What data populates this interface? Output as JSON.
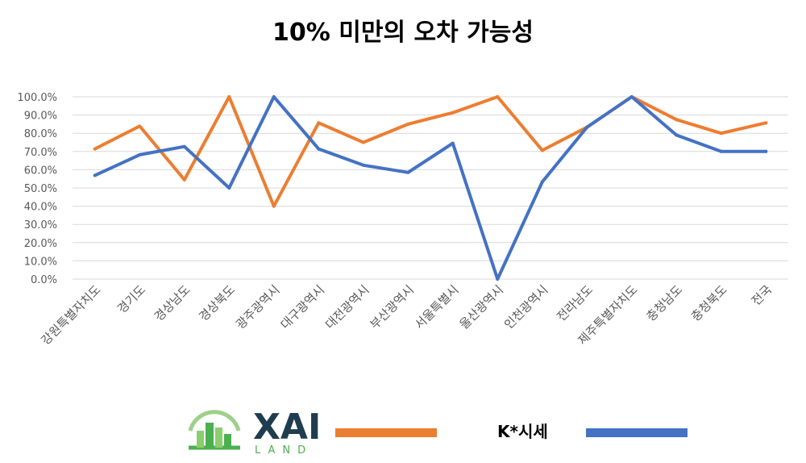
{
  "chart_data": {
    "type": "line",
    "title": "10% 미만의 오차 가능성",
    "categories": [
      "강원특별자치도",
      "경기도",
      "경상남도",
      "경상북도",
      "광주광역시",
      "대구광역시",
      "대전광역시",
      "부산광역시",
      "서울특별시",
      "울산광역시",
      "인천광역시",
      "전라남도",
      "제주특별자치도",
      "충청남도",
      "충청북도",
      "전국"
    ],
    "ylim": [
      0,
      100
    ],
    "yticks": [
      "0.0%",
      "10.0%",
      "20.0%",
      "30.0%",
      "40.0%",
      "50.0%",
      "60.0%",
      "70.0%",
      "80.0%",
      "90.0%",
      "100.0%"
    ],
    "grid": true,
    "series": [
      {
        "name": "XAI LAND",
        "color": "#ed7d31",
        "values": [
          71.4,
          83.9,
          54.5,
          100.0,
          40.0,
          85.7,
          75.0,
          85.0,
          91.3,
          100.0,
          70.6,
          83.3,
          100.0,
          87.5,
          80.0,
          85.7
        ]
      },
      {
        "name": "K*시세",
        "color": "#4472c4",
        "values": [
          56.9,
          68.2,
          72.7,
          50.0,
          100.0,
          71.4,
          62.5,
          58.5,
          74.5,
          0.0,
          53.3,
          83.3,
          100.0,
          79.0,
          70.0,
          70.0
        ]
      }
    ]
  },
  "legend": {
    "logo_text": "XAI",
    "logo_sub": "LAND",
    "second_label": "K*시세"
  }
}
